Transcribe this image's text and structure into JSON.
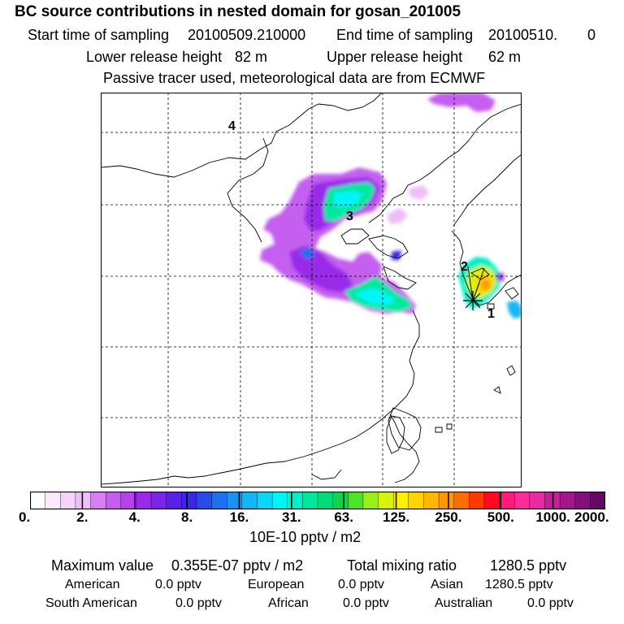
{
  "header": {
    "title": "BC  source contributions in nested domain for gosan_201005",
    "start_label": "Start time of sampling",
    "start_value": "20100509.210000",
    "end_label": "End time of sampling",
    "end_value": "20100510.",
    "end_suffix": "0",
    "lower_label": "Lower release height",
    "lower_value": "82 m",
    "upper_label": "Upper release height",
    "upper_value": "62 m",
    "note": "Passive tracer used, meteorological data are from ECMWF"
  },
  "map": {
    "markers": [
      {
        "label": "1"
      },
      {
        "label": "2"
      },
      {
        "label": "3"
      },
      {
        "label": "4"
      }
    ],
    "station_symbol": "asterisk-icon"
  },
  "colorbar": {
    "ticks": [
      "0.",
      "2.",
      "4.",
      "8.",
      "16.",
      "31.",
      "63.",
      "125.",
      "250.",
      "500.",
      "1000.",
      "2000."
    ],
    "colors": [
      "#ffffff",
      "#fbe9fd",
      "#f5d3fb",
      "#efbef9",
      "#d680f3",
      "#c55ef0",
      "#b642ee",
      "#9a29ea",
      "#7c24e9",
      "#5a1fe8",
      "#3b26e8",
      "#2a4be8",
      "#1f70ee",
      "#1893f2",
      "#13b6f5",
      "#0bd8f8",
      "#00f5f5",
      "#00f0c8",
      "#00e7a0",
      "#00dc78",
      "#12d44c",
      "#4fe326",
      "#9bef18",
      "#d8f40c",
      "#fff000",
      "#ffd400",
      "#ffb800",
      "#ff9800",
      "#ff6c00",
      "#ff3a00",
      "#ff0a22",
      "#ff1a78",
      "#ff2c9e",
      "#e82aa4",
      "#c41f96",
      "#a3178a",
      "#850f7a",
      "#640a62"
    ],
    "units": "10E-10 pptv / m2"
  },
  "stats": {
    "max_label": "Maximum value",
    "max_value": "0.355E-07 pptv / m2",
    "total_label": "Total mixing ratio",
    "total_value": "1280.5 pptv",
    "american_label": "American",
    "american_value": "0.0 pptv",
    "european_label": "European",
    "european_value": "0.0 pptv",
    "asian_label": "Asian",
    "asian_value": "1280.5 pptv",
    "south_american_label": "South American",
    "south_american_value": "0.0 pptv",
    "african_label": "African",
    "african_value": "0.0 pptv",
    "australian_label": "Australian",
    "australian_value": "0.0 pptv"
  }
}
